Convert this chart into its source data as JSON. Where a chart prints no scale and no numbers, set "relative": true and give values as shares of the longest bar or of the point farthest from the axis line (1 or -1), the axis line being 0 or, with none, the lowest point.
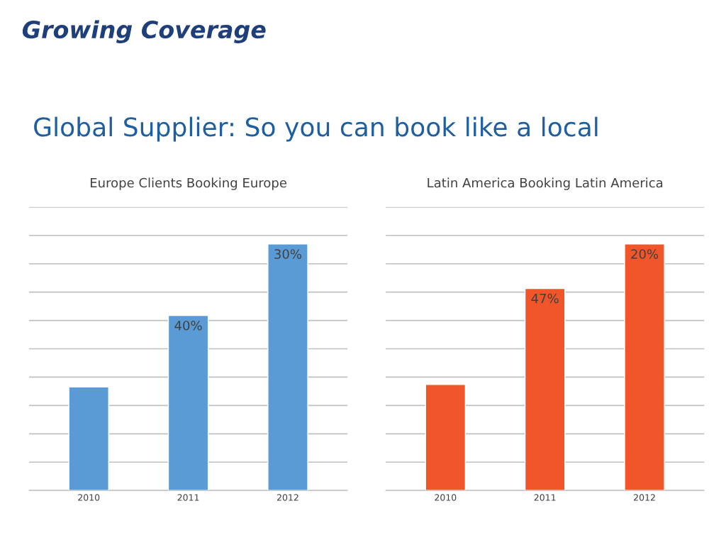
{
  "chart_data": [
    {
      "type": "bar",
      "title": "Europe Clients Booking Europe",
      "categories": [
        "2010",
        "2011",
        "2012"
      ],
      "relative": true,
      "grid": "y",
      "annotations": [
        "Growing Coverage",
        "Global Supplier: So you can book like a local",
        {
          "text": "40%",
          "x": "2011",
          "y": 0.71
        },
        {
          "text": "30%",
          "x": "2012",
          "y": 1
        }
      ],
      "series": [
        {
          "color": "#5b9bd5",
          "values": [
            0.42,
            0.71,
            1
          ]
        }
      ]
    },
    {
      "type": "bar",
      "title": "Latin America Booking Latin America",
      "categories": [
        "2010",
        "2011",
        "2012"
      ],
      "relative": true,
      "grid": "y",
      "annotations": [
        {
          "text": "47%",
          "x": "2011",
          "y": 0.82
        },
        {
          "text": "20%",
          "x": "2012",
          "y": 1
        }
      ],
      "series": [
        {
          "color": "#f0562a",
          "values": [
            0.43,
            0.82,
            1
          ]
        }
      ]
    }
  ]
}
